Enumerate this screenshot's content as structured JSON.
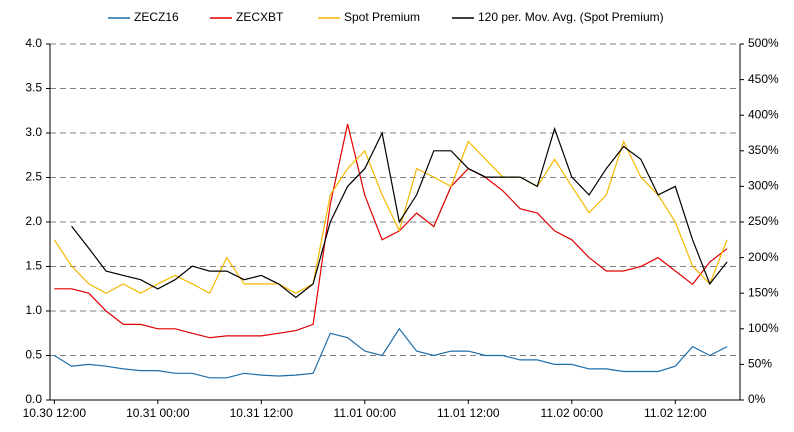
{
  "chart_data": {
    "type": "line",
    "x": [
      12,
      14,
      16,
      18,
      20,
      22,
      24,
      26,
      28,
      30,
      32,
      34,
      36,
      38,
      40,
      42,
      44,
      46,
      48,
      50,
      52,
      54,
      56,
      58,
      60,
      62,
      64,
      66,
      68,
      70,
      72,
      74,
      76,
      78,
      80,
      82,
      84,
      86,
      88,
      90
    ],
    "series": [
      {
        "name": "ZECZ16",
        "color": "#1f6ea8",
        "axis": "y",
        "values": [
          0.5,
          0.38,
          0.4,
          0.38,
          0.35,
          0.33,
          0.33,
          0.3,
          0.3,
          0.25,
          0.25,
          0.3,
          0.28,
          0.27,
          0.28,
          0.3,
          0.75,
          0.7,
          0.55,
          0.5,
          0.8,
          0.55,
          0.5,
          0.55,
          0.55,
          0.5,
          0.5,
          0.45,
          0.45,
          0.4,
          0.4,
          0.35,
          0.35,
          0.32,
          0.32,
          0.32,
          0.38,
          0.6,
          0.5,
          0.6
        ]
      },
      {
        "name": "ZECXBT",
        "color": "#e00000",
        "axis": "y",
        "values": [
          1.25,
          1.25,
          1.2,
          1.0,
          0.85,
          0.85,
          0.8,
          0.8,
          0.75,
          0.7,
          0.72,
          0.72,
          0.72,
          0.75,
          0.78,
          0.85,
          2.2,
          3.1,
          2.3,
          1.8,
          1.9,
          2.1,
          1.95,
          2.4,
          2.6,
          2.5,
          2.35,
          2.15,
          2.1,
          1.9,
          1.8,
          1.6,
          1.45,
          1.45,
          1.5,
          1.6,
          1.45,
          1.3,
          1.55,
          1.7
        ]
      },
      {
        "name": "Spot Premium",
        "color": "#f5b800",
        "axis": "y2",
        "values": [
          225,
          188,
          163,
          150,
          163,
          150,
          163,
          175,
          163,
          150,
          200,
          163,
          163,
          163,
          150,
          163,
          288,
          325,
          350,
          288,
          238,
          325,
          313,
          300,
          363,
          338,
          313,
          313,
          300,
          338,
          300,
          263,
          288,
          363,
          313,
          288,
          250,
          188,
          163,
          225
        ]
      },
      {
        "name": "120 per. Mov. Avg. (Spot Premium)",
        "color": "#000000",
        "axis": "y2",
        "values": [
          null,
          244,
          213,
          181,
          175,
          169,
          156,
          169,
          188,
          181,
          181,
          169,
          175,
          163,
          144,
          163,
          250,
          300,
          325,
          375,
          250,
          288,
          350,
          350,
          325,
          313,
          313,
          313,
          300,
          381,
          313,
          288,
          325,
          356,
          338,
          288,
          300,
          225,
          163,
          194
        ]
      }
    ],
    "xlim": [
      11.5,
      91.5
    ],
    "xticks": [
      {
        "value": 12,
        "label": "10.30 12:00"
      },
      {
        "value": 24,
        "label": "10.31 00:00"
      },
      {
        "value": 36,
        "label": "10.31 12:00"
      },
      {
        "value": 48,
        "label": "11.01 00:00"
      },
      {
        "value": 60,
        "label": "11.01 12:00"
      },
      {
        "value": 72,
        "label": "11.02 00:00"
      },
      {
        "value": 84,
        "label": "11.02 12:00"
      }
    ],
    "ylim": [
      0,
      4
    ],
    "yticks": [
      {
        "value": 0,
        "label": "0.0"
      },
      {
        "value": 0.5,
        "label": "0.5"
      },
      {
        "value": 1,
        "label": "1.0"
      },
      {
        "value": 1.5,
        "label": "1.5"
      },
      {
        "value": 2,
        "label": "2.0"
      },
      {
        "value": 2.5,
        "label": "2.5"
      },
      {
        "value": 3,
        "label": "3.0"
      },
      {
        "value": 3.5,
        "label": "3.5"
      },
      {
        "value": 4,
        "label": "4.0"
      }
    ],
    "y2lim": [
      0,
      500
    ],
    "y2ticks": [
      {
        "value": 0,
        "label": "0%"
      },
      {
        "value": 50,
        "label": "50%"
      },
      {
        "value": 100,
        "label": "100%"
      },
      {
        "value": 150,
        "label": "150%"
      },
      {
        "value": 200,
        "label": "200%"
      },
      {
        "value": 250,
        "label": "250%"
      },
      {
        "value": 300,
        "label": "300%"
      },
      {
        "value": 350,
        "label": "350%"
      },
      {
        "value": 400,
        "label": "400%"
      },
      {
        "value": 450,
        "label": "450%"
      },
      {
        "value": 500,
        "label": "500%"
      }
    ],
    "grid": true,
    "legend": "top"
  }
}
